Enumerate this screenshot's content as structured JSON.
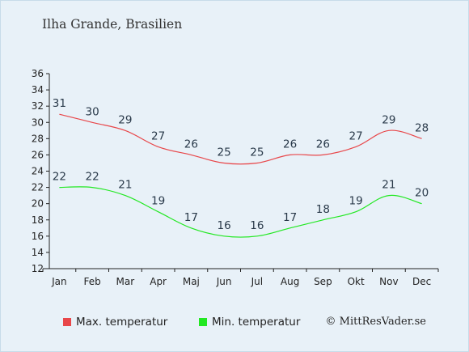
{
  "title": "Ilha Grande, Brasilien",
  "credit": "© MittResVader.se",
  "legend": {
    "max_label": "Max. temperatur",
    "min_label": "Min. temperatur"
  },
  "colors": {
    "max": "#e8474a",
    "min": "#22e822",
    "background": "#e8f1f8",
    "axis": "#222222"
  },
  "chart_data": {
    "type": "line",
    "categories": [
      "Jan",
      "Feb",
      "Mar",
      "Apr",
      "Maj",
      "Jun",
      "Jul",
      "Aug",
      "Sep",
      "Okt",
      "Nov",
      "Dec"
    ],
    "series": [
      {
        "name": "Max. temperatur",
        "values": [
          31,
          30,
          29,
          27,
          26,
          25,
          25,
          26,
          26,
          27,
          29,
          28
        ]
      },
      {
        "name": "Min. temperatur",
        "values": [
          22,
          22,
          21,
          19,
          17,
          16,
          16,
          17,
          18,
          19,
          21,
          20
        ]
      }
    ],
    "ylim": [
      12,
      36
    ],
    "yticks": [
      12,
      14,
      16,
      18,
      20,
      22,
      24,
      26,
      28,
      30,
      32,
      34,
      36
    ],
    "grid": false,
    "legend_position": "bottom"
  }
}
